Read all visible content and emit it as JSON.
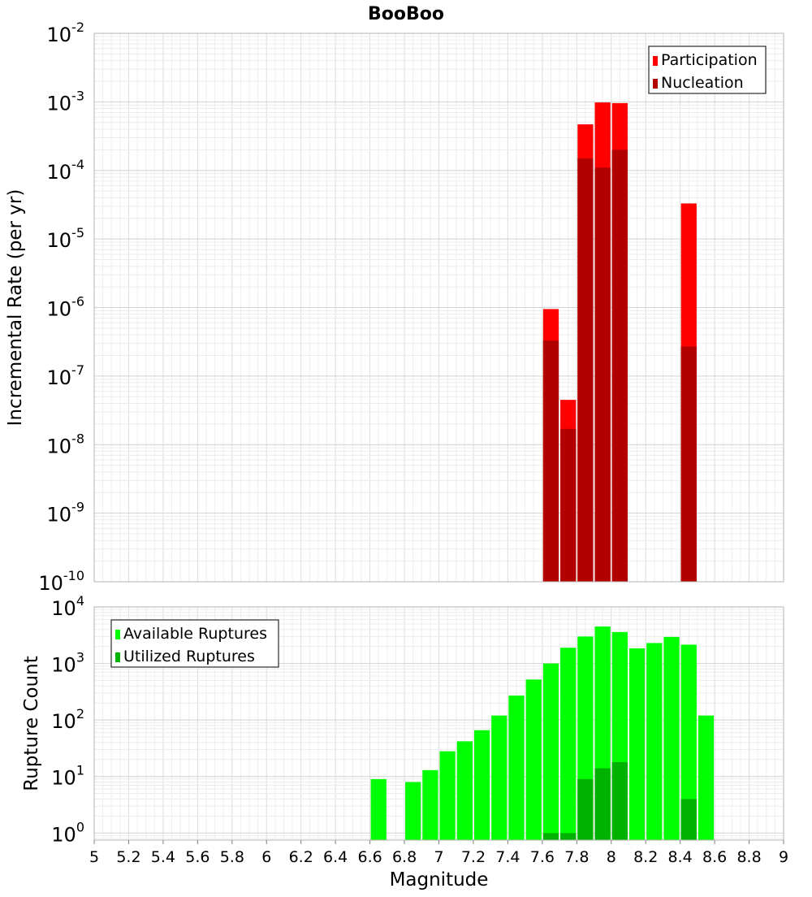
{
  "chart_data": [
    {
      "type": "bar",
      "title": "BooBoo",
      "xlabel": "",
      "ylabel": "Incremental Rate (per yr)",
      "y_scale": "log",
      "ylim": [
        1e-10,
        0.01
      ],
      "xlim": [
        5,
        9
      ],
      "bar_width": 0.1,
      "grid": true,
      "legend_position": "top-right",
      "overlay": true,
      "y_tick_exponents": [
        -10,
        -9,
        -8,
        -7,
        -6,
        -5,
        -4,
        -3,
        -2
      ],
      "series": [
        {
          "name": "Participation",
          "color": "#ff0000",
          "points": [
            {
              "x": 7.65,
              "y": 9.5e-07
            },
            {
              "x": 7.75,
              "y": 4.5e-08
            },
            {
              "x": 7.85,
              "y": 0.00047
            },
            {
              "x": 7.95,
              "y": 0.00098
            },
            {
              "x": 8.05,
              "y": 0.00096
            },
            {
              "x": 8.45,
              "y": 3.3e-05
            }
          ]
        },
        {
          "name": "Nucleation",
          "color": "#b20000",
          "points": [
            {
              "x": 7.65,
              "y": 3.3e-07
            },
            {
              "x": 7.75,
              "y": 1.7e-08
            },
            {
              "x": 7.85,
              "y": 0.00015
            },
            {
              "x": 7.95,
              "y": 0.00011
            },
            {
              "x": 8.05,
              "y": 0.0002
            },
            {
              "x": 8.45,
              "y": 2.7e-07
            }
          ]
        }
      ]
    },
    {
      "type": "bar",
      "title": "",
      "xlabel": "Magnitude",
      "ylabel": "Rupture Count",
      "y_scale": "log",
      "ylim": [
        0.75,
        10000
      ],
      "xlim": [
        5,
        9
      ],
      "bar_width": 0.1,
      "grid": true,
      "legend_position": "top-left",
      "overlay": true,
      "y_tick_exponents": [
        0,
        1,
        2,
        3,
        4
      ],
      "x_ticks": [
        "5",
        "5.2",
        "5.4",
        "5.6",
        "5.8",
        "6",
        "6.2",
        "6.4",
        "6.6",
        "6.8",
        "7",
        "7.2",
        "7.4",
        "7.6",
        "7.8",
        "8",
        "8.2",
        "8.4",
        "8.6",
        "8.8",
        "9"
      ],
      "series": [
        {
          "name": "Available Ruptures",
          "color": "#00ff00",
          "points": [
            {
              "x": 6.65,
              "y": 9
            },
            {
              "x": 6.85,
              "y": 8
            },
            {
              "x": 6.95,
              "y": 13
            },
            {
              "x": 7.05,
              "y": 28
            },
            {
              "x": 7.15,
              "y": 42
            },
            {
              "x": 7.25,
              "y": 66
            },
            {
              "x": 7.35,
              "y": 120
            },
            {
              "x": 7.45,
              "y": 270
            },
            {
              "x": 7.55,
              "y": 520
            },
            {
              "x": 7.65,
              "y": 1000
            },
            {
              "x": 7.75,
              "y": 1900
            },
            {
              "x": 7.85,
              "y": 3000
            },
            {
              "x": 7.95,
              "y": 4500
            },
            {
              "x": 8.05,
              "y": 3600
            },
            {
              "x": 8.15,
              "y": 1850
            },
            {
              "x": 8.25,
              "y": 2300
            },
            {
              "x": 8.35,
              "y": 2950
            },
            {
              "x": 8.45,
              "y": 2150
            },
            {
              "x": 8.55,
              "y": 120
            }
          ]
        },
        {
          "name": "Utilized Ruptures",
          "color": "#00b200",
          "points": [
            {
              "x": 7.65,
              "y": 1
            },
            {
              "x": 7.75,
              "y": 1
            },
            {
              "x": 7.85,
              "y": 9
            },
            {
              "x": 7.95,
              "y": 14
            },
            {
              "x": 8.05,
              "y": 18
            },
            {
              "x": 8.45,
              "y": 4
            }
          ]
        }
      ]
    }
  ]
}
